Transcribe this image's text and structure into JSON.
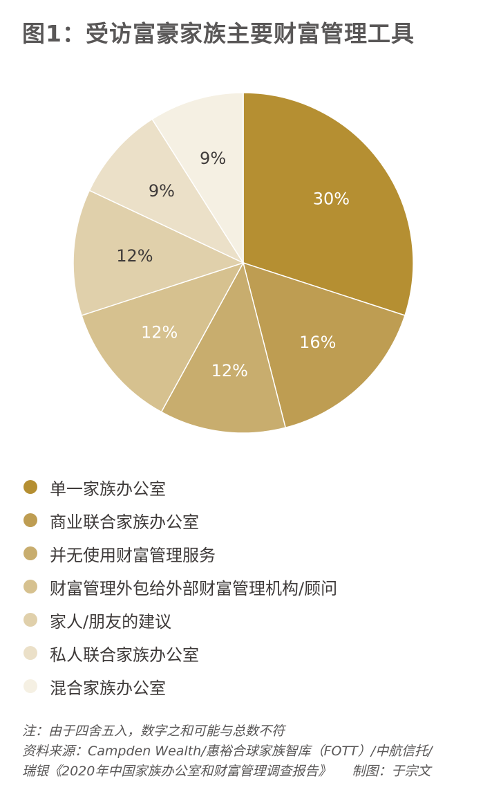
{
  "title": "图1：受访富豪家族主要财富管理工具",
  "chart_data": {
    "type": "pie",
    "start_angle_deg": 0,
    "direction": "clockwise",
    "slices": [
      {
        "label": "单一家族办公室",
        "value": 30,
        "display": "30%",
        "color": "#b58f32",
        "label_color": "#ffffff"
      },
      {
        "label": "商业联合家族办公室",
        "value": 16,
        "display": "16%",
        "color": "#be9d52",
        "label_color": "#ffffff"
      },
      {
        "label": "并无使用财富管理服务",
        "value": 12,
        "display": "12%",
        "color": "#c8ad6e",
        "label_color": "#ffffff"
      },
      {
        "label": "财富管理外包给外部财富管理机构/顾问",
        "value": 12,
        "display": "12%",
        "color": "#d6c18f",
        "label_color": "#ffffff"
      },
      {
        "label": "家人/朋友的建议",
        "value": 12,
        "display": "12%",
        "color": "#e0d0ab",
        "label_color": "#3e3a39"
      },
      {
        "label": "私人联合家族办公室",
        "value": 9,
        "display": "9%",
        "color": "#ebe0c8",
        "label_color": "#3e3a39"
      },
      {
        "label": "混合家族办公室",
        "value": 9,
        "display": "9%",
        "color": "#f5f0e3",
        "label_color": "#3e3a39"
      }
    ]
  },
  "notes": {
    "note": "注：由于四舍五入，数字之和可能与总数不符",
    "source_line1": "资料来源：Campden Wealth/惠裕合球家族智库（FOTT）/中航信托/",
    "source_line2": "瑞银《2020年中国家族办公室和财富管理调查报告》",
    "credit": "制图：于宗文"
  }
}
